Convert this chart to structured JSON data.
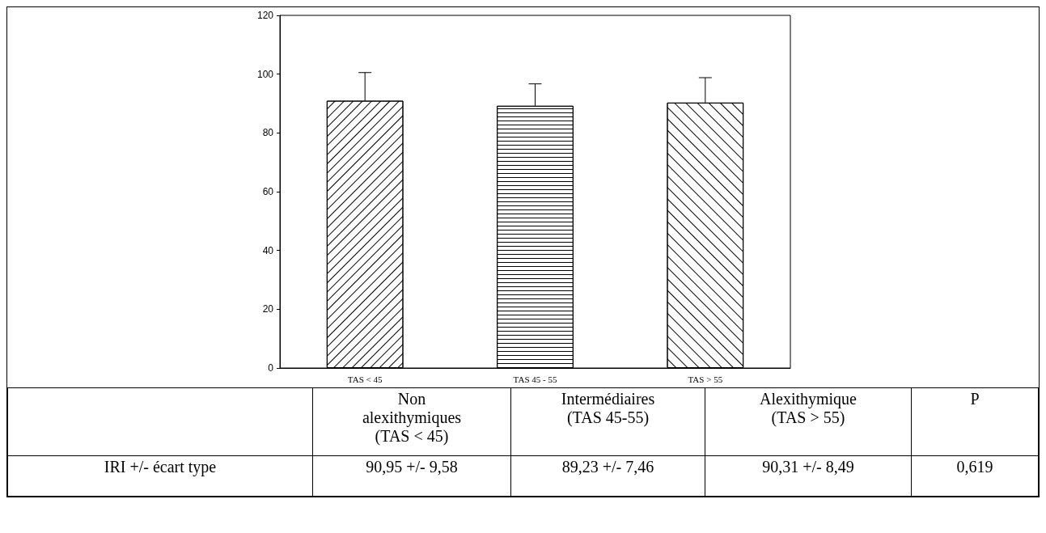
{
  "chart_data": {
    "type": "bar",
    "categories": [
      "TAS < 45",
      "TAS 45 - 55",
      "TAS > 55"
    ],
    "values": [
      90.95,
      89.23,
      90.31
    ],
    "errors": [
      [
        90.95,
        100.53
      ],
      [
        89.23,
        96.69
      ],
      [
        90.31,
        98.8
      ]
    ],
    "colors": [
      "#ffffff",
      "#ffffff",
      "#ffffff"
    ],
    "ylim": [
      0,
      120
    ],
    "yticks": [
      0,
      20,
      40,
      60,
      80,
      100,
      120
    ],
    "grid": false,
    "annotations": [
      "Non alexithymiques (TAS < 45)",
      "Intermédiaires (TAS 45-55)",
      "Alexithymique (TAS > 55)",
      "P",
      "IRI  +/- écart type",
      "90,95 +/- 9,58",
      "89,23 +/- 7,46",
      "90,31 +/- 8,49",
      "0,619"
    ]
  }
}
